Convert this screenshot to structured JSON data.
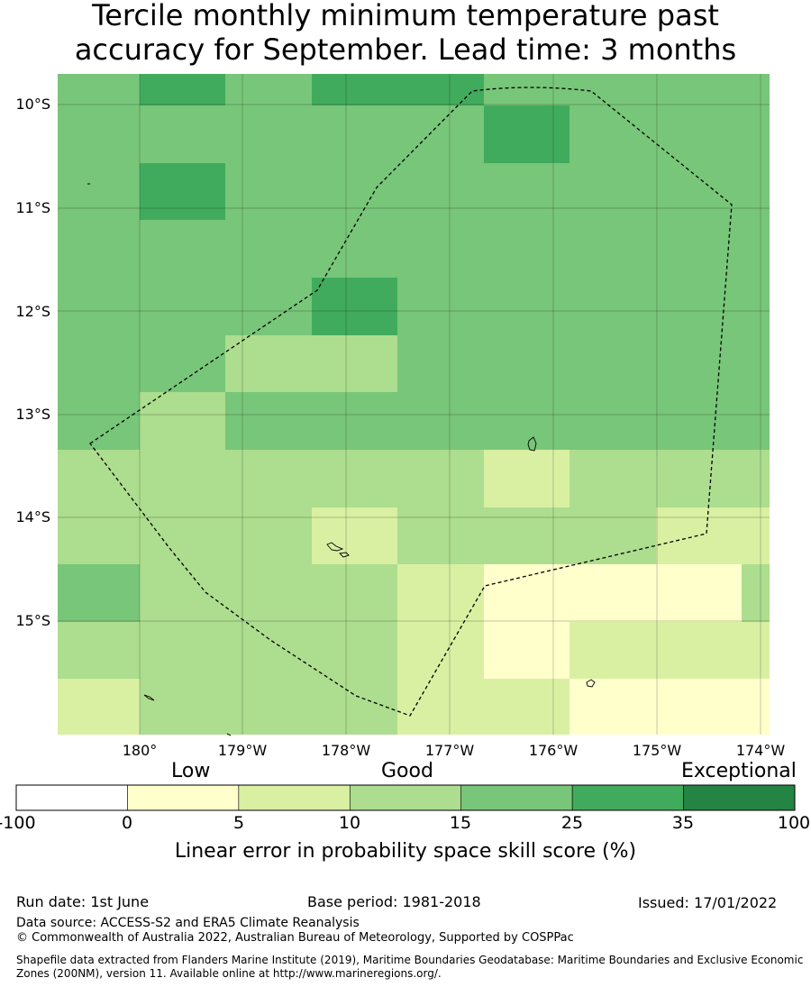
{
  "title": {
    "line1": "Tercile monthly minimum temperature past",
    "line2": "accuracy for September. Lead time: 3 months"
  },
  "map": {
    "lat_labels": [
      "10°S",
      "11°S",
      "12°S",
      "13°S",
      "14°S",
      "15°S"
    ],
    "lon_labels": [
      "180°",
      "179°W",
      "178°W",
      "177°W",
      "176°W",
      "175°W",
      "174°W"
    ],
    "grid_rows": [
      [
        "c4",
        "c5",
        "c4",
        "c5",
        "c5",
        "c4",
        "c4",
        "c4"
      ],
      [
        "c4",
        "c4",
        "c4",
        "c4",
        "c4",
        "c5",
        "c4",
        "c4"
      ],
      [
        "c4",
        "c5",
        "c4",
        "c4",
        "c4",
        "c4",
        "c4",
        "c4"
      ],
      [
        "c4",
        "c4",
        "c4",
        "c4",
        "c4",
        "c4",
        "c4",
        "c4"
      ],
      [
        "c4",
        "c4",
        "c4",
        "c5",
        "c4",
        "c4",
        "c4",
        "c4"
      ],
      [
        "c4",
        "c4",
        "c3",
        "c3",
        "c4",
        "c4",
        "c4",
        "c4"
      ],
      [
        "c4",
        "c3",
        "c4",
        "c4",
        "c4",
        "c4",
        "c4",
        "c4"
      ],
      [
        "c3",
        "c3",
        "c3",
        "c3",
        "c3",
        "c2",
        "c3",
        "c3"
      ],
      [
        "c3",
        "c3",
        "c3",
        "c2",
        "c3",
        "c3",
        "c3",
        "c2"
      ],
      [
        "c4",
        "c3",
        "c3",
        "c3",
        "c2",
        "c1",
        "c1",
        "c3"
      ],
      [
        "c3",
        "c3",
        "c3",
        "c3",
        "c2",
        "c1",
        "c2",
        "c2"
      ],
      [
        "c2",
        "c3",
        "c3",
        "c3",
        "c2",
        "c2",
        "c1",
        "c1"
      ]
    ]
  },
  "colorbar": {
    "low_label": "Low",
    "good_label": "Good",
    "exceptional_label": "Exceptional",
    "ticks": [
      "-100",
      "0",
      "5",
      "10",
      "15",
      "25",
      "35",
      "100"
    ],
    "colors": [
      "#ffffff",
      "#ffffcc",
      "#d9f0a3",
      "#addd8e",
      "#78c679",
      "#41ab5d",
      "#238443"
    ],
    "title": "Linear error in probability space skill score (%)"
  },
  "footer": {
    "run_date": "Run date: 1st June",
    "base_period": "Base period: 1981-2018",
    "issued": "Issued: 17/01/2022",
    "data_source": "Data source: ACCESS-S2 and ERA5 Climate Reanalysis",
    "copyright": "© Commonwealth of Australia 2022, Australian Bureau of Meteorology, Supported by COSPPac",
    "shapefile_note": "Shapefile data extracted from Flanders Marine Institute (2019), Maritime Boundaries Geodatabase: Maritime Boundaries and Exclusive Economic Zones (200NM), version 11. Available online at http://www.marineregions.org/."
  }
}
